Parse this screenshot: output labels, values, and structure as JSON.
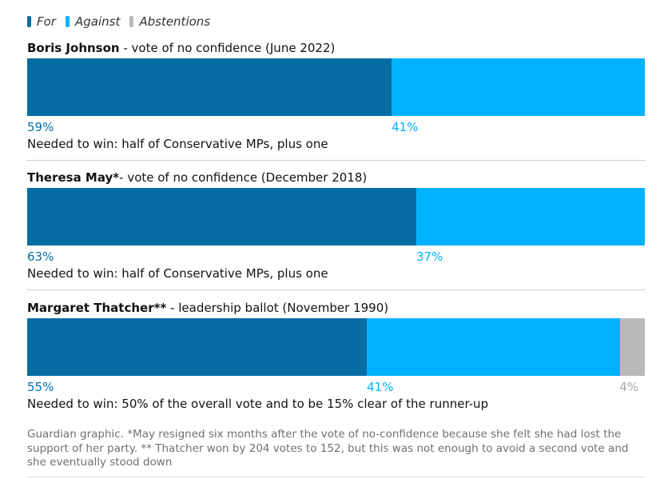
{
  "legend": [
    {
      "label": "For",
      "color": "#056da1"
    },
    {
      "label": "Against",
      "color": "#00b2ff"
    },
    {
      "label": "Abstentions",
      "color": "#bababa"
    }
  ],
  "chart_data": {
    "type": "bar",
    "orientation": "horizontal-stacked-100",
    "series_colors": {
      "For": "#056da1",
      "Against": "#00b2ff",
      "Abstentions": "#bababa"
    },
    "votes": [
      {
        "name": "Boris Johnson",
        "title_rest": " - vote of no confidence (June 2022)",
        "for": 59,
        "against": 41,
        "abstentions": null,
        "for_label": "59%",
        "against_label": "41%",
        "abstentions_label": "",
        "note": "Needed to win: half of Conservative MPs, plus one"
      },
      {
        "name": "Theresa May*",
        "title_rest": "- vote of no confidence (December 2018)",
        "for": 63,
        "against": 37,
        "abstentions": null,
        "for_label": "63%",
        "against_label": "37%",
        "abstentions_label": "",
        "note": "Needed to win: half of Conservative MPs, plus one"
      },
      {
        "name": "Margaret Thatcher**",
        "title_rest": " - leadership ballot (November 1990)",
        "for": 55,
        "against": 41,
        "abstentions": 4,
        "for_label": "55%",
        "against_label": "41%",
        "abstentions_label": "4%",
        "note": "Needed to win: 50% of the overall vote and to be 15% clear of the runner-up"
      }
    ]
  },
  "source_note": "Guardian graphic. *May resigned six months after the vote of no-confidence because she felt she had lost the support of her party. ** Thatcher won by 204 votes to 152, but this was not enough to avoid a second vote and she eventually stood down"
}
